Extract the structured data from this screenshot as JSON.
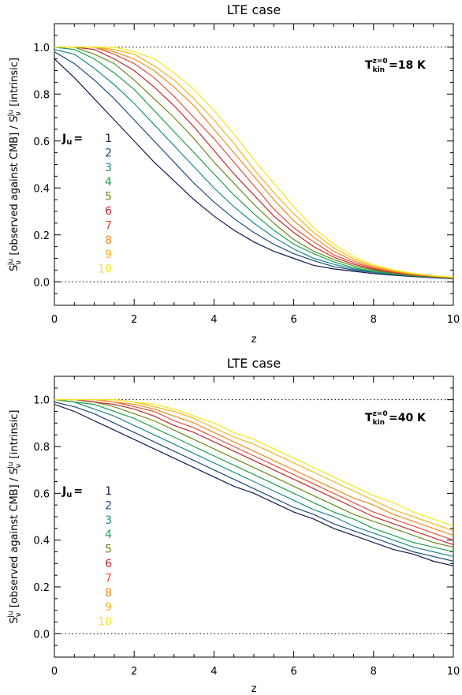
{
  "chart_data": [
    {
      "type": "line",
      "title": "LTE case",
      "xlabel": "z",
      "ylabel": "S_ν^{J_u} [observed against CMB] / S_ν^{J_u} [intrinsic]",
      "xlim": [
        0,
        10
      ],
      "ylim": [
        -0.1,
        1.1
      ],
      "xticks": [
        0,
        2,
        4,
        6,
        8,
        10
      ],
      "xtick_labels": [
        "0",
        "2",
        "4",
        "6",
        "8",
        "10"
      ],
      "yticks": [
        0.0,
        0.2,
        0.4,
        0.6,
        0.8,
        1.0
      ],
      "ytick_labels": [
        "0.0",
        "0.2",
        "0.4",
        "0.6",
        "0.8",
        "1.0"
      ],
      "reference_lines": [
        1.0,
        0.0
      ],
      "annotation": {
        "main": "T",
        "sup": "z=0",
        "sub": "kin",
        "value": "=18 K"
      },
      "legend": {
        "title": "J",
        "title_sub": "u",
        "title_suffix": "=",
        "placement": "center-left"
      },
      "grid": false,
      "x": [
        0,
        0.5,
        1,
        1.5,
        2,
        2.5,
        3,
        3.5,
        4,
        4.5,
        5,
        5.5,
        6,
        6.5,
        7,
        7.5,
        8,
        8.5,
        9,
        9.5,
        10
      ],
      "series": [
        {
          "name": "1",
          "color": "#141850",
          "values": [
            0.95,
            0.87,
            0.78,
            0.69,
            0.6,
            0.51,
            0.43,
            0.35,
            0.28,
            0.22,
            0.17,
            0.13,
            0.1,
            0.07,
            0.055,
            0.045,
            0.035,
            0.028,
            0.022,
            0.017,
            0.013
          ]
        },
        {
          "name": "2",
          "color": "#1c4b7a",
          "values": [
            0.98,
            0.93,
            0.86,
            0.78,
            0.69,
            0.6,
            0.51,
            0.42,
            0.34,
            0.27,
            0.21,
            0.16,
            0.12,
            0.09,
            0.065,
            0.05,
            0.04,
            0.03,
            0.024,
            0.018,
            0.014
          ]
        },
        {
          "name": "3",
          "color": "#1b8a8a",
          "values": [
            0.99,
            0.97,
            0.91,
            0.84,
            0.76,
            0.67,
            0.58,
            0.49,
            0.4,
            0.32,
            0.25,
            0.19,
            0.14,
            0.1,
            0.075,
            0.055,
            0.042,
            0.032,
            0.025,
            0.019,
            0.015
          ]
        },
        {
          "name": "4",
          "color": "#1ea04a",
          "values": [
            1.0,
            0.99,
            0.95,
            0.89,
            0.82,
            0.73,
            0.64,
            0.55,
            0.46,
            0.37,
            0.29,
            0.22,
            0.16,
            0.12,
            0.085,
            0.06,
            0.045,
            0.034,
            0.026,
            0.02,
            0.016
          ]
        },
        {
          "name": "5",
          "color": "#6a8a1e",
          "values": [
            1.0,
            1.0,
            0.97,
            0.93,
            0.86,
            0.78,
            0.7,
            0.61,
            0.51,
            0.42,
            0.33,
            0.25,
            0.18,
            0.13,
            0.095,
            0.068,
            0.05,
            0.036,
            0.027,
            0.021,
            0.016
          ]
        },
        {
          "name": "6",
          "color": "#c0282a",
          "values": [
            1.0,
            1.0,
            0.99,
            0.95,
            0.9,
            0.83,
            0.75,
            0.66,
            0.56,
            0.46,
            0.37,
            0.28,
            0.21,
            0.15,
            0.105,
            0.075,
            0.054,
            0.039,
            0.029,
            0.022,
            0.017
          ]
        },
        {
          "name": "7",
          "color": "#e0503a",
          "values": [
            1.0,
            1.0,
            1.0,
            0.97,
            0.93,
            0.87,
            0.79,
            0.7,
            0.61,
            0.51,
            0.41,
            0.31,
            0.23,
            0.17,
            0.115,
            0.082,
            0.058,
            0.041,
            0.03,
            0.023,
            0.017
          ]
        },
        {
          "name": "8",
          "color": "#ef8c1c",
          "values": [
            1.0,
            1.0,
            1.0,
            0.98,
            0.95,
            0.9,
            0.83,
            0.75,
            0.65,
            0.55,
            0.45,
            0.35,
            0.26,
            0.19,
            0.13,
            0.09,
            0.062,
            0.044,
            0.032,
            0.024,
            0.018
          ]
        },
        {
          "name": "9",
          "color": "#f2b41c",
          "values": [
            1.0,
            1.0,
            1.0,
            0.99,
            0.97,
            0.92,
            0.86,
            0.78,
            0.69,
            0.59,
            0.48,
            0.38,
            0.29,
            0.21,
            0.145,
            0.098,
            0.067,
            0.047,
            0.034,
            0.025,
            0.019
          ]
        },
        {
          "name": "10",
          "color": "#f5e61e",
          "values": [
            1.0,
            1.0,
            1.0,
            1.0,
            0.98,
            0.95,
            0.89,
            0.82,
            0.73,
            0.63,
            0.52,
            0.42,
            0.32,
            0.23,
            0.16,
            0.108,
            0.072,
            0.05,
            0.036,
            0.026,
            0.02
          ]
        }
      ]
    },
    {
      "type": "line",
      "title": "LTE case",
      "xlabel": "z",
      "ylabel": "S_ν^{J_u} [observed against CMB] / S_ν^{J_u} [intrinsic]",
      "xlim": [
        0,
        10
      ],
      "ylim": [
        -0.1,
        1.1
      ],
      "xticks": [
        0,
        2,
        4,
        6,
        8,
        10
      ],
      "xtick_labels": [
        "0",
        "2",
        "4",
        "6",
        "8",
        "10"
      ],
      "yticks": [
        0.0,
        0.2,
        0.4,
        0.6,
        0.8,
        1.0
      ],
      "ytick_labels": [
        "0.0",
        "0.2",
        "0.4",
        "0.6",
        "0.8",
        "1.0"
      ],
      "reference_lines": [
        1.0,
        0.0
      ],
      "annotation": {
        "main": "T",
        "sup": "z=0",
        "sub": "kin",
        "value": "=40 K"
      },
      "legend": {
        "title": "J",
        "title_sub": "u",
        "title_suffix": "=",
        "placement": "center-left"
      },
      "grid": false,
      "x": [
        0,
        0.5,
        1,
        1.5,
        2,
        2.5,
        3,
        3.5,
        4,
        4.5,
        5,
        5.5,
        6,
        6.5,
        7,
        7.5,
        8,
        8.5,
        9,
        9.5,
        10
      ],
      "series": [
        {
          "name": "1",
          "color": "#141850",
          "values": [
            0.98,
            0.95,
            0.91,
            0.87,
            0.83,
            0.79,
            0.75,
            0.71,
            0.67,
            0.63,
            0.6,
            0.56,
            0.52,
            0.49,
            0.45,
            0.42,
            0.39,
            0.36,
            0.34,
            0.31,
            0.29
          ]
        },
        {
          "name": "2",
          "color": "#1c4b7a",
          "values": [
            0.99,
            0.97,
            0.94,
            0.9,
            0.86,
            0.82,
            0.78,
            0.74,
            0.7,
            0.66,
            0.62,
            0.58,
            0.54,
            0.51,
            0.47,
            0.44,
            0.41,
            0.38,
            0.35,
            0.33,
            0.31
          ]
        },
        {
          "name": "3",
          "color": "#1b8a8a",
          "values": [
            1.0,
            0.99,
            0.96,
            0.93,
            0.89,
            0.85,
            0.81,
            0.77,
            0.73,
            0.69,
            0.65,
            0.61,
            0.57,
            0.53,
            0.5,
            0.46,
            0.43,
            0.4,
            0.37,
            0.35,
            0.33
          ]
        },
        {
          "name": "4",
          "color": "#1ea04a",
          "values": [
            1.0,
            0.99,
            0.98,
            0.95,
            0.92,
            0.88,
            0.84,
            0.8,
            0.76,
            0.72,
            0.68,
            0.64,
            0.6,
            0.56,
            0.52,
            0.49,
            0.45,
            0.42,
            0.39,
            0.37,
            0.35
          ]
        },
        {
          "name": "5",
          "color": "#6a8a1e",
          "values": [
            1.0,
            1.0,
            0.99,
            0.97,
            0.94,
            0.91,
            0.87,
            0.83,
            0.79,
            0.75,
            0.71,
            0.67,
            0.63,
            0.59,
            0.55,
            0.51,
            0.48,
            0.45,
            0.42,
            0.39,
            0.37
          ]
        },
        {
          "name": "6",
          "color": "#c0282a",
          "values": [
            1.0,
            1.0,
            0.99,
            0.98,
            0.96,
            0.93,
            0.89,
            0.86,
            0.82,
            0.78,
            0.74,
            0.7,
            0.66,
            0.62,
            0.58,
            0.54,
            0.5,
            0.47,
            0.44,
            0.41,
            0.38
          ]
        },
        {
          "name": "7",
          "color": "#e0503a",
          "values": [
            1.0,
            1.0,
            1.0,
            0.99,
            0.97,
            0.95,
            0.91,
            0.88,
            0.84,
            0.8,
            0.76,
            0.72,
            0.68,
            0.64,
            0.6,
            0.56,
            0.52,
            0.49,
            0.46,
            0.43,
            0.4
          ]
        },
        {
          "name": "8",
          "color": "#ef8c1c",
          "values": [
            1.0,
            1.0,
            1.0,
            0.99,
            0.98,
            0.96,
            0.93,
            0.9,
            0.86,
            0.82,
            0.78,
            0.74,
            0.7,
            0.66,
            0.62,
            0.58,
            0.55,
            0.51,
            0.48,
            0.45,
            0.42
          ]
        },
        {
          "name": "9",
          "color": "#f2b41c",
          "values": [
            1.0,
            1.0,
            1.0,
            1.0,
            0.99,
            0.97,
            0.95,
            0.92,
            0.88,
            0.84,
            0.81,
            0.77,
            0.73,
            0.69,
            0.65,
            0.61,
            0.57,
            0.53,
            0.5,
            0.47,
            0.44
          ]
        },
        {
          "name": "10",
          "color": "#f5e61e",
          "values": [
            1.0,
            1.0,
            1.0,
            1.0,
            0.99,
            0.98,
            0.96,
            0.93,
            0.9,
            0.86,
            0.83,
            0.79,
            0.75,
            0.71,
            0.67,
            0.63,
            0.59,
            0.56,
            0.52,
            0.49,
            0.46
          ]
        }
      ]
    }
  ]
}
